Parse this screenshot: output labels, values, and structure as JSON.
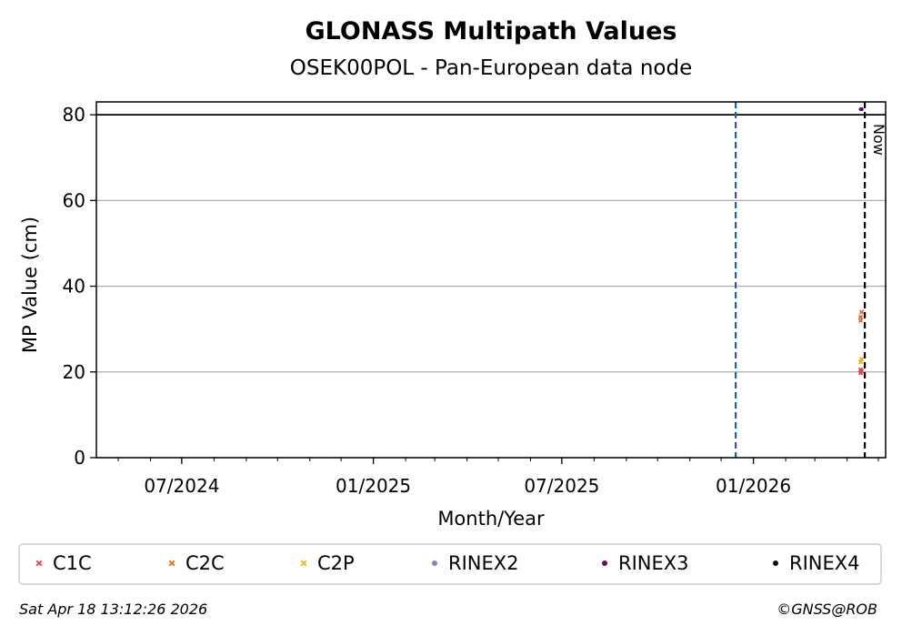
{
  "chart_data": {
    "type": "scatter",
    "title": "GLONASS Multipath Values",
    "subtitle": "OSEK00POL - Pan-European data node",
    "xlabel": "Month/Year",
    "ylabel": "MP Value (cm)",
    "xlim": [
      "2024-04-10",
      "2026-05-08"
    ],
    "ylim": [
      0,
      83
    ],
    "grid": "y",
    "yticks": [
      0,
      20,
      40,
      60,
      80
    ],
    "xticks": [
      {
        "date": "2024-07-01",
        "label": "07/2024"
      },
      {
        "date": "2025-01-01",
        "label": "01/2025"
      },
      {
        "date": "2025-07-01",
        "label": "07/2025"
      },
      {
        "date": "2026-01-01",
        "label": "01/2026"
      }
    ],
    "threshold_line": {
      "y": 80,
      "color": "#000000"
    },
    "vlines": [
      {
        "date": "2025-12-15",
        "color": "#1f5fa8",
        "label": ""
      },
      {
        "date": "2026-04-18",
        "color": "#000000",
        "label": "Now"
      }
    ],
    "series": [
      {
        "name": "C1C",
        "marker": "x",
        "color": "#e8433a",
        "points": [
          [
            "2026-04-14",
            20.5
          ],
          [
            "2026-04-14",
            19.8
          ],
          [
            "2026-04-15",
            20.2
          ]
        ]
      },
      {
        "name": "C2C",
        "marker": "x",
        "color": "#f26522",
        "points": [
          [
            "2026-04-14",
            32.0
          ],
          [
            "2026-04-14",
            32.8
          ],
          [
            "2026-04-15",
            34.0
          ]
        ]
      },
      {
        "name": "C2P",
        "marker": "x",
        "color": "#f7b20a",
        "points": [
          [
            "2026-04-14",
            22.3
          ],
          [
            "2026-04-15",
            23.0
          ]
        ]
      },
      {
        "name": "RINEX2",
        "marker": "o",
        "color": "#8a7fc4",
        "points": []
      },
      {
        "name": "RINEX3",
        "marker": "o",
        "color": "#6b0a5a",
        "points": [
          [
            "2026-04-14",
            81.3
          ],
          [
            "2026-04-15",
            81.3
          ],
          [
            "2026-04-15",
            81.3
          ]
        ]
      },
      {
        "name": "RINEX4",
        "marker": "o",
        "color": "#1a0a1a",
        "points": []
      }
    ],
    "legend": "bottom"
  },
  "footer": {
    "timestamp": "Sat Apr 18 13:12:26 2026",
    "credit": "©GNSS@ROB"
  }
}
